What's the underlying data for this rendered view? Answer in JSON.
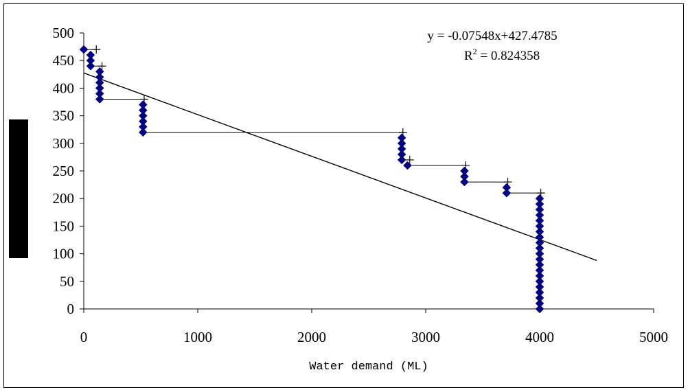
{
  "chart_data": {
    "type": "scatter",
    "title": "",
    "xlabel": "Water demand (ML)",
    "ylabel": "",
    "xlim": [
      0,
      5000
    ],
    "ylim": [
      0,
      500
    ],
    "xticks": [
      "0",
      "1000",
      "2000",
      "3000",
      "4000",
      "5000"
    ],
    "yticks": [
      "0",
      "50",
      "100",
      "150",
      "200",
      "250",
      "300",
      "350",
      "400",
      "450",
      "500"
    ],
    "grid": false,
    "legend": "none",
    "series": [
      {
        "marker": "diamond",
        "color": "#000080",
        "points": [
          [
            0,
            470
          ],
          [
            60,
            460
          ],
          [
            60,
            450
          ],
          [
            60,
            440
          ],
          [
            140,
            430
          ],
          [
            140,
            420
          ],
          [
            140,
            410
          ],
          [
            140,
            400
          ],
          [
            140,
            390
          ],
          [
            140,
            380
          ],
          [
            520,
            370
          ],
          [
            520,
            360
          ],
          [
            520,
            350
          ],
          [
            520,
            340
          ],
          [
            520,
            330
          ],
          [
            520,
            320
          ],
          [
            2790,
            310
          ],
          [
            2790,
            300
          ],
          [
            2790,
            290
          ],
          [
            2790,
            280
          ],
          [
            2790,
            270
          ],
          [
            2840,
            260
          ],
          [
            3340,
            250
          ],
          [
            3340,
            240
          ],
          [
            3340,
            230
          ],
          [
            3710,
            220
          ],
          [
            3710,
            210
          ],
          [
            4000,
            200
          ],
          [
            4000,
            190
          ],
          [
            4000,
            180
          ],
          [
            4000,
            170
          ],
          [
            4000,
            160
          ],
          [
            4000,
            150
          ],
          [
            4000,
            140
          ],
          [
            4000,
            130
          ],
          [
            4000,
            120
          ],
          [
            4000,
            110
          ],
          [
            4000,
            100
          ],
          [
            4000,
            90
          ],
          [
            4000,
            80
          ],
          [
            4000,
            70
          ],
          [
            4000,
            60
          ],
          [
            4000,
            50
          ],
          [
            4000,
            40
          ],
          [
            4000,
            30
          ],
          [
            4000,
            20
          ],
          [
            4000,
            10
          ],
          [
            4000,
            0
          ]
        ]
      },
      {
        "marker": "step-line-plus",
        "color": "#000000",
        "points": [
          [
            0,
            470
          ],
          [
            110,
            470
          ],
          [
            60,
            440
          ],
          [
            160,
            440
          ],
          [
            140,
            380
          ],
          [
            530,
            380
          ],
          [
            520,
            320
          ],
          [
            2800,
            320
          ],
          [
            2790,
            270
          ],
          [
            2860,
            270
          ],
          [
            2840,
            260
          ],
          [
            3350,
            260
          ],
          [
            3340,
            230
          ],
          [
            3720,
            230
          ],
          [
            3710,
            210
          ],
          [
            4010,
            210
          ]
        ]
      }
    ],
    "trendline": {
      "slope": -0.07548,
      "intercept": 427.4785,
      "x_range": [
        0,
        4500
      ],
      "color": "#000000"
    },
    "annotations": {
      "equation": "y = -0.07548x+427.4785",
      "r2_prefix": "R",
      "r2_sup": "2",
      "r2_value": " = 0.824358"
    }
  }
}
